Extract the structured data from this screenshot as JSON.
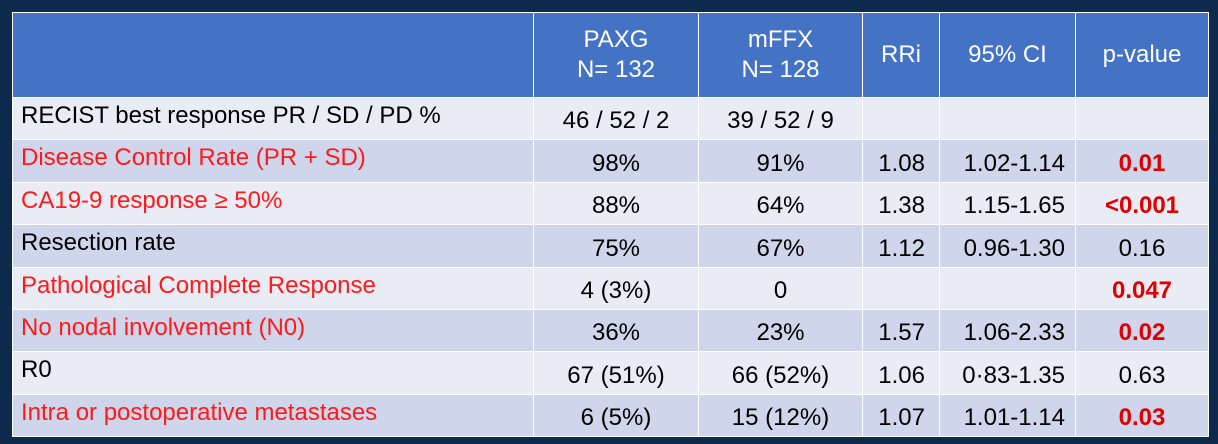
{
  "table": {
    "headers": [
      {
        "lines": [
          ""
        ]
      },
      {
        "lines": [
          "PAXG",
          "N= 132"
        ]
      },
      {
        "lines": [
          "mFFX",
          "N= 128"
        ]
      },
      {
        "lines": [
          "RRi"
        ]
      },
      {
        "lines": [
          "95% CI"
        ]
      },
      {
        "lines": [
          "p-value"
        ]
      }
    ],
    "rows": [
      {
        "label": "RECIST best response PR / SD / PD %",
        "paxg": "46 / 52 / 2",
        "mffx": "39 / 52 / 9",
        "rri": "",
        "ci": "",
        "p": ""
      },
      {
        "label": "Disease Control Rate (PR + SD)",
        "paxg": "98%",
        "mffx": "91%",
        "rri": "1.08",
        "ci": "1.02-1.14",
        "p": "0.01"
      },
      {
        "label": "CA19-9 response ≥ 50%",
        "paxg": "88%",
        "mffx": "64%",
        "rri": "1.38",
        "ci": "1.15-1.65",
        "p": "<0.001"
      },
      {
        "label": "Resection rate",
        "paxg": "75%",
        "mffx": "67%",
        "rri": "1.12",
        "ci": "0.96-1.30",
        "p": "0.16"
      },
      {
        "label": "Pathological Complete Response",
        "paxg": "4 (3%)",
        "mffx": "0",
        "rri": "",
        "ci": "",
        "p": "0.047"
      },
      {
        "label": "No nodal involvement (N0)",
        "paxg": "36%",
        "mffx": "23%",
        "rri": "1.57",
        "ci": "1.06-2.33",
        "p": "0.02"
      },
      {
        "label": "R0",
        "paxg": "67 (51%)",
        "mffx": "66 (52%)",
        "rri": "1.06",
        "ci": "0·83-1.35",
        "p": "0.63"
      },
      {
        "label": "Intra or postoperative metastases",
        "paxg": "6 (5%)",
        "mffx": "15 (12%)",
        "rri": "1.07",
        "ci": "1.01-1.14",
        "p": "0.03"
      }
    ]
  },
  "colors": {
    "header_bg": "#4472c4",
    "row_light": "#e9ebf5",
    "row_dark": "#cfd5ea",
    "highlight_label": "#ff1a1a",
    "significant_p": "#e00000",
    "frame": "#0d2a4d"
  }
}
